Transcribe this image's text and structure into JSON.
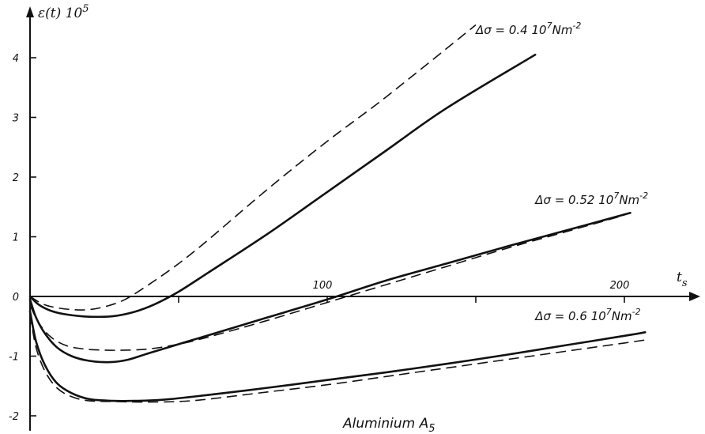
{
  "chart_data": {
    "type": "line",
    "ylabel_main": "ε(t) 10",
    "ylabel_exp": "5",
    "xlabel_main": "t",
    "xlabel_sub": "s",
    "caption_main": "Aluminium  A",
    "caption_sub": "5",
    "xlim": [
      0,
      230
    ],
    "ylim": [
      -2.25,
      4.75
    ],
    "x_ticks": [
      0,
      50,
      100,
      150,
      200
    ],
    "x_tick_labels": [
      "",
      "",
      "100",
      "",
      "200"
    ],
    "y_ticks": [
      -2,
      -1,
      0,
      1,
      2,
      3,
      4
    ],
    "y_tick_labels": [
      "-2",
      "-1",
      "0",
      "1",
      "2",
      "3",
      "4"
    ],
    "grid": false,
    "annotations": [
      {
        "id": "ann-04",
        "label": "Δσ = 0.4",
        "unit_main": "10",
        "unit_exp": "7",
        "unit_tail": "Nm",
        "unit_tail_exp": "-2",
        "x": 150,
        "y": 4.4
      },
      {
        "id": "ann-052",
        "label": "Δσ = 0.52",
        "unit_main": "10",
        "unit_exp": "7",
        "unit_tail": "Nm",
        "unit_tail_exp": "-2",
        "x": 170,
        "y": 1.55
      },
      {
        "id": "ann-06",
        "label": "Δσ = 0.6",
        "unit_main": "10",
        "unit_exp": "7",
        "unit_tail": "Nm",
        "unit_tail_exp": "-2",
        "x": 170,
        "y": -0.4
      }
    ],
    "series": [
      {
        "style": "solid",
        "points": [
          [
            0,
            0
          ],
          [
            3,
            -0.14
          ],
          [
            7,
            -0.24
          ],
          [
            12,
            -0.3
          ],
          [
            20,
            -0.34
          ],
          [
            28,
            -0.33
          ],
          [
            35,
            -0.26
          ],
          [
            42,
            -0.13
          ],
          [
            50,
            0.08
          ],
          [
            60,
            0.4
          ],
          [
            80,
            1.05
          ],
          [
            100,
            1.75
          ],
          [
            120,
            2.45
          ],
          [
            140,
            3.15
          ],
          [
            170,
            4.05
          ]
        ]
      },
      {
        "style": "dashed",
        "points": [
          [
            0,
            0
          ],
          [
            4,
            -0.12
          ],
          [
            8,
            -0.18
          ],
          [
            14,
            -0.22
          ],
          [
            20,
            -0.22
          ],
          [
            26,
            -0.16
          ],
          [
            32,
            -0.05
          ],
          [
            40,
            0.2
          ],
          [
            50,
            0.55
          ],
          [
            60,
            0.95
          ],
          [
            80,
            1.8
          ],
          [
            100,
            2.6
          ],
          [
            120,
            3.35
          ],
          [
            150,
            4.55
          ]
        ]
      },
      {
        "style": "solid",
        "points": [
          [
            0,
            -0.05
          ],
          [
            2,
            -0.35
          ],
          [
            5,
            -0.62
          ],
          [
            9,
            -0.85
          ],
          [
            14,
            -1.0
          ],
          [
            20,
            -1.08
          ],
          [
            27,
            -1.1
          ],
          [
            33,
            -1.06
          ],
          [
            40,
            -0.95
          ],
          [
            50,
            -0.8
          ],
          [
            60,
            -0.65
          ],
          [
            80,
            -0.35
          ],
          [
            100,
            -0.05
          ],
          [
            120,
            0.27
          ],
          [
            140,
            0.55
          ],
          [
            160,
            0.83
          ],
          [
            180,
            1.1
          ],
          [
            202,
            1.4
          ]
        ]
      },
      {
        "style": "dashed",
        "points": [
          [
            0,
            -0.15
          ],
          [
            3,
            -0.45
          ],
          [
            7,
            -0.68
          ],
          [
            12,
            -0.82
          ],
          [
            18,
            -0.88
          ],
          [
            25,
            -0.9
          ],
          [
            32,
            -0.9
          ],
          [
            40,
            -0.88
          ],
          [
            50,
            -0.8
          ],
          [
            60,
            -0.68
          ],
          [
            80,
            -0.4
          ],
          [
            100,
            -0.1
          ],
          [
            120,
            0.2
          ],
          [
            140,
            0.5
          ],
          [
            160,
            0.8
          ],
          [
            180,
            1.08
          ],
          [
            200,
            1.36
          ]
        ]
      },
      {
        "style": "solid",
        "points": [
          [
            0,
            -0.25
          ],
          [
            2,
            -0.75
          ],
          [
            5,
            -1.15
          ],
          [
            9,
            -1.45
          ],
          [
            14,
            -1.62
          ],
          [
            20,
            -1.72
          ],
          [
            28,
            -1.75
          ],
          [
            35,
            -1.75
          ],
          [
            45,
            -1.73
          ],
          [
            60,
            -1.65
          ],
          [
            80,
            -1.53
          ],
          [
            100,
            -1.4
          ],
          [
            120,
            -1.27
          ],
          [
            140,
            -1.13
          ],
          [
            160,
            -0.98
          ],
          [
            180,
            -0.82
          ],
          [
            200,
            -0.66
          ],
          [
            207,
            -0.6
          ]
        ]
      },
      {
        "style": "dashed",
        "points": [
          [
            0,
            -0.3
          ],
          [
            2,
            -0.85
          ],
          [
            5,
            -1.25
          ],
          [
            9,
            -1.53
          ],
          [
            14,
            -1.68
          ],
          [
            20,
            -1.75
          ],
          [
            28,
            -1.76
          ],
          [
            38,
            -1.77
          ],
          [
            50,
            -1.76
          ],
          [
            60,
            -1.72
          ],
          [
            80,
            -1.6
          ],
          [
            100,
            -1.48
          ],
          [
            120,
            -1.34
          ],
          [
            140,
            -1.2
          ],
          [
            160,
            -1.06
          ],
          [
            180,
            -0.92
          ],
          [
            200,
            -0.78
          ],
          [
            207,
            -0.73
          ]
        ]
      }
    ]
  }
}
